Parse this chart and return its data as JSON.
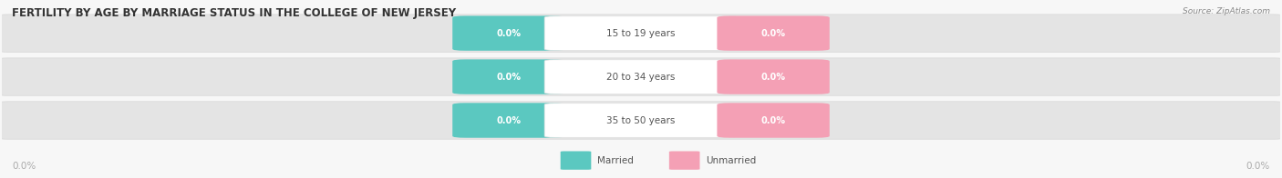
{
  "title": "FERTILITY BY AGE BY MARRIAGE STATUS IN THE COLLEGE OF NEW JERSEY",
  "source": "Source: ZipAtlas.com",
  "categories": [
    "15 to 19 years",
    "20 to 34 years",
    "35 to 50 years"
  ],
  "married_values": [
    0.0,
    0.0,
    0.0
  ],
  "unmarried_values": [
    0.0,
    0.0,
    0.0
  ],
  "married_color": "#5bc8c0",
  "unmarried_color": "#f4a0b5",
  "title_color": "#333333",
  "source_color": "#888888",
  "axis_label_color": "#aaaaaa",
  "fig_bg_color": "#f7f7f7",
  "bar_bg_color": "#e4e4e4",
  "bar_bg_stroke": "#d8d8d8",
  "label_center_bg": "#ffffff",
  "label_center_stroke": "#e0e0e0",
  "xlim_left_label": "0.0%",
  "xlim_right_label": "0.0%"
}
